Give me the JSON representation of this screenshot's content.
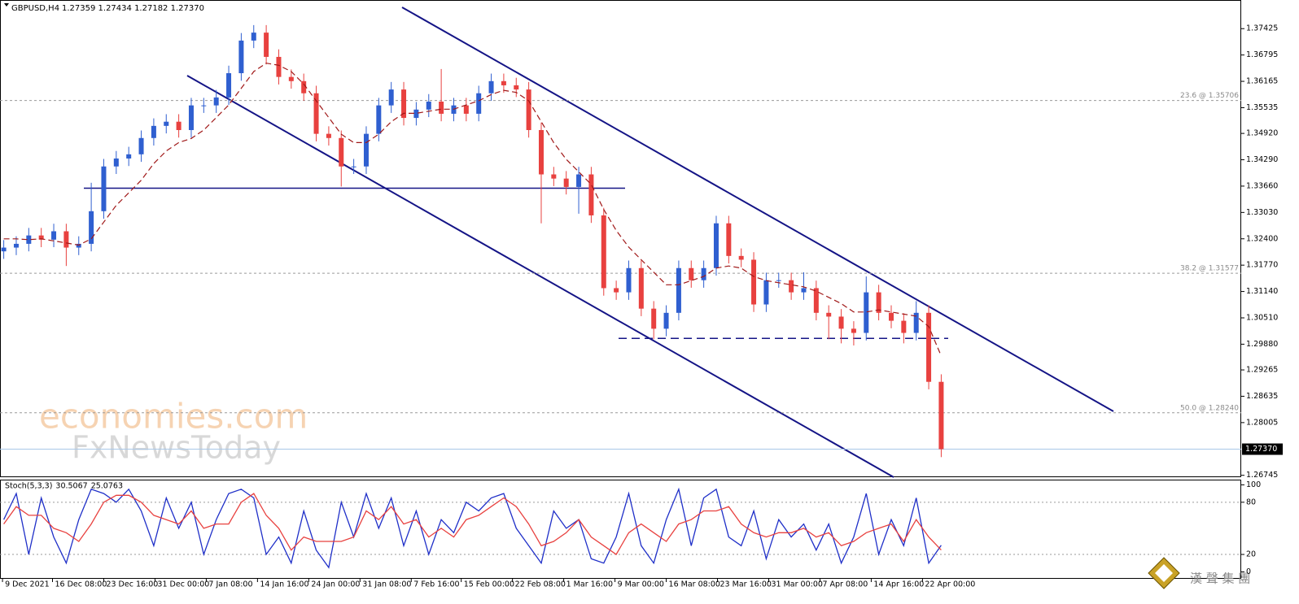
{
  "chart_data": [
    {
      "type": "candlestick",
      "title": "GBPUSD,H4",
      "header_values": "1.27359 1.27434 1.27182 1.27370",
      "xlim": [
        -0.3,
        99
      ],
      "ylim": [
        1.267,
        1.3811
      ],
      "yticks": [
        {
          "value": 1.37425,
          "label": "1.37425"
        },
        {
          "value": 1.36795,
          "label": "1.36795"
        },
        {
          "value": 1.36165,
          "label": "1.36165"
        },
        {
          "value": 1.35535,
          "label": "1.35535"
        },
        {
          "value": 1.3492,
          "label": "1.34920"
        },
        {
          "value": 1.3429,
          "label": "1.34290"
        },
        {
          "value": 1.3366,
          "label": "1.33660"
        },
        {
          "value": 1.3303,
          "label": "1.33030"
        },
        {
          "value": 1.324,
          "label": "1.32400"
        },
        {
          "value": 1.3177,
          "label": "1.31770"
        },
        {
          "value": 1.3114,
          "label": "1.31140"
        },
        {
          "value": 1.3051,
          "label": "1.30510"
        },
        {
          "value": 1.2988,
          "label": "1.29880"
        },
        {
          "value": 1.29265,
          "label": "1.29265"
        },
        {
          "value": 1.28635,
          "label": "1.28635"
        },
        {
          "value": 1.28005,
          "label": "1.28005"
        },
        {
          "value": 1.26745,
          "label": "1.26745"
        }
      ],
      "up_color": "#2f5fd0",
      "down_color": "#e8413f",
      "open": [
        1.321,
        1.3219,
        1.3228,
        1.3248,
        1.3238,
        1.3258,
        1.3219,
        1.3228,
        1.3306,
        1.3413,
        1.3432,
        1.3442,
        1.3481,
        1.351,
        1.352,
        1.35,
        1.3559,
        1.3559,
        1.3578,
        1.3636,
        1.3714,
        1.3733,
        1.3675,
        1.3627,
        1.3617,
        1.3588,
        1.3491,
        1.3481,
        1.3413,
        1.3413,
        1.3491,
        1.3559,
        1.3597,
        1.3529,
        1.3549,
        1.3568,
        1.3539,
        1.3559,
        1.3539,
        1.3588,
        1.3617,
        1.3607,
        1.3597,
        1.35,
        1.3394,
        1.3384,
        1.3364,
        1.3394,
        1.3296,
        1.3122,
        1.3112,
        1.317,
        1.3073,
        1.3025,
        1.3063,
        1.317,
        1.3141,
        1.317,
        1.3277,
        1.3199,
        1.319,
        1.3083,
        1.3141,
        1.3141,
        1.3112,
        1.3122,
        1.3063,
        1.3054,
        1.3025,
        1.3015,
        1.3112,
        1.3063,
        1.3044,
        1.3015,
        1.3063,
        1.2898
      ],
      "high": [
        1.3237,
        1.3246,
        1.3266,
        1.3266,
        1.3276,
        1.3276,
        1.3246,
        1.3374,
        1.3431,
        1.345,
        1.346,
        1.3499,
        1.3528,
        1.3538,
        1.3538,
        1.3577,
        1.3577,
        1.3596,
        1.3654,
        1.3732,
        1.3751,
        1.3751,
        1.3693,
        1.3645,
        1.3635,
        1.3606,
        1.3509,
        1.3499,
        1.3431,
        1.3509,
        1.3577,
        1.3615,
        1.3615,
        1.3567,
        1.3586,
        1.3646,
        1.3577,
        1.3577,
        1.3606,
        1.3635,
        1.3635,
        1.3625,
        1.3615,
        1.3518,
        1.3412,
        1.3402,
        1.3412,
        1.3412,
        1.3314,
        1.314,
        1.3188,
        1.3188,
        1.3091,
        1.3081,
        1.3188,
        1.3188,
        1.3188,
        1.3295,
        1.3295,
        1.3217,
        1.3208,
        1.3159,
        1.3159,
        1.3159,
        1.316,
        1.314,
        1.3081,
        1.3072,
        1.3043,
        1.315,
        1.313,
        1.3081,
        1.3062,
        1.3091,
        1.3081,
        1.2916
      ],
      "low": [
        1.3192,
        1.3201,
        1.321,
        1.322,
        1.322,
        1.3175,
        1.3201,
        1.321,
        1.3288,
        1.3395,
        1.3414,
        1.3424,
        1.3463,
        1.3492,
        1.3482,
        1.3482,
        1.3541,
        1.3541,
        1.356,
        1.3618,
        1.3696,
        1.3657,
        1.3609,
        1.3599,
        1.357,
        1.3473,
        1.3463,
        1.3365,
        1.3395,
        1.3395,
        1.3473,
        1.3541,
        1.3511,
        1.3511,
        1.3531,
        1.3521,
        1.3521,
        1.3521,
        1.3521,
        1.357,
        1.3589,
        1.3579,
        1.3482,
        1.3277,
        1.3366,
        1.3346,
        1.33,
        1.3278,
        1.3104,
        1.3094,
        1.3094,
        1.3055,
        1.3,
        1.3007,
        1.3045,
        1.3123,
        1.3123,
        1.3152,
        1.3181,
        1.3172,
        1.3065,
        1.3065,
        1.3123,
        1.3094,
        1.3094,
        1.3045,
        1.3,
        1.299,
        1.2985,
        1.2997,
        1.3045,
        1.3026,
        1.299,
        1.2997,
        1.288,
        1.2718
      ],
      "close": [
        1.3219,
        1.3228,
        1.3248,
        1.3238,
        1.3258,
        1.3219,
        1.3228,
        1.3306,
        1.3413,
        1.3432,
        1.3442,
        1.3481,
        1.351,
        1.352,
        1.35,
        1.3559,
        1.3559,
        1.3578,
        1.3636,
        1.3714,
        1.3733,
        1.3675,
        1.3627,
        1.3617,
        1.3588,
        1.3491,
        1.3481,
        1.3413,
        1.3413,
        1.3491,
        1.3559,
        1.3597,
        1.3529,
        1.3549,
        1.3568,
        1.3539,
        1.3559,
        1.3539,
        1.3588,
        1.3617,
        1.3607,
        1.3597,
        1.35,
        1.3394,
        1.3384,
        1.3364,
        1.3394,
        1.3296,
        1.3122,
        1.3112,
        1.317,
        1.3073,
        1.3025,
        1.3063,
        1.317,
        1.3141,
        1.317,
        1.3277,
        1.3199,
        1.319,
        1.3083,
        1.3141,
        1.3141,
        1.3112,
        1.3122,
        1.3063,
        1.3054,
        1.3025,
        1.3015,
        1.3112,
        1.3063,
        1.3044,
        1.3015,
        1.3063,
        1.2898,
        1.2737
      ],
      "ma": {
        "color": "#a01818",
        "values": [
          1.324,
          1.324,
          1.3238,
          1.324,
          1.3235,
          1.323,
          1.3225,
          1.324,
          1.328,
          1.332,
          1.335,
          1.338,
          1.342,
          1.345,
          1.347,
          1.348,
          1.35,
          1.353,
          1.356,
          1.36,
          1.364,
          1.366,
          1.3655,
          1.364,
          1.361,
          1.357,
          1.353,
          1.349,
          1.347,
          1.347,
          1.349,
          1.352,
          1.354,
          1.354,
          1.3545,
          1.355,
          1.355,
          1.356,
          1.357,
          1.3585,
          1.3595,
          1.359,
          1.357,
          1.352,
          1.347,
          1.343,
          1.34,
          1.337,
          1.331,
          1.326,
          1.322,
          1.319,
          1.316,
          1.313,
          1.313,
          1.314,
          1.315,
          1.317,
          1.3175,
          1.317,
          1.315,
          1.314,
          1.3135,
          1.313,
          1.3125,
          1.3115,
          1.31,
          1.3085,
          1.3065,
          1.3065,
          1.307,
          1.3065,
          1.306,
          1.3055,
          1.303,
          1.296
        ]
      },
      "hlines": [
        {
          "value": 1.3361,
          "dashed": false
        },
        {
          "value": 1.3002,
          "dashed": true
        }
      ],
      "fib_levels": [
        {
          "value": 1.35706,
          "label": "23.6 @ 1.35706"
        },
        {
          "value": 1.31577,
          "label": "38.2 @ 1.31577"
        },
        {
          "value": 1.2824,
          "label": "50.0 @ 1.28240"
        }
      ],
      "current_price": {
        "value": 1.2737,
        "label": "1.27370"
      },
      "watermarks": [
        "economies.com",
        "FxNewsToday"
      ],
      "logo_text": "漢 聲 集 團"
    },
    {
      "type": "line",
      "title": "Stoch(5,3,3)",
      "xlim": [
        -0.3,
        99
      ],
      "ylim": [
        -8,
        106
      ],
      "yticks": [
        100,
        80,
        20,
        0
      ],
      "levels": [
        80,
        20
      ],
      "xticks": [
        {
          "value": -0.1,
          "label": "9 Dec 2021"
        },
        {
          "value": 3.9,
          "label": "16 Dec 08:00"
        },
        {
          "value": 8.0,
          "label": "23 Dec 16:00"
        },
        {
          "value": 12.1,
          "label": "31 Dec 00:00"
        },
        {
          "value": 16.2,
          "label": "7 Jan 08:00"
        },
        {
          "value": 20.3,
          "label": "14 Jan 16:00"
        },
        {
          "value": 24.4,
          "label": "24 Jan 00:00"
        },
        {
          "value": 28.5,
          "label": "31 Jan 08:00"
        },
        {
          "value": 32.6,
          "label": "7 Feb 16:00"
        },
        {
          "value": 36.6,
          "label": "15 Feb 00:00"
        },
        {
          "value": 40.7,
          "label": "22 Feb 08:00"
        },
        {
          "value": 44.8,
          "label": "1 Mar 16:00"
        },
        {
          "value": 48.9,
          "label": "9 Mar 00:00"
        },
        {
          "value": 53.0,
          "label": "16 Mar 08:00"
        },
        {
          "value": 57.1,
          "label": "23 Mar 16:00"
        },
        {
          "value": 61.2,
          "label": "31 Mar 00:00"
        },
        {
          "value": 65.3,
          "label": "7 Apr 08:00"
        },
        {
          "value": 69.4,
          "label": "14 Apr 16:00"
        },
        {
          "value": 73.5,
          "label": "22 Apr 00:00"
        }
      ],
      "lines": [
        {
          "color": "#1f2fc8",
          "values": [
            60,
            90,
            20,
            85,
            40,
            10,
            60,
            95,
            90,
            80,
            95,
            70,
            30,
            85,
            50,
            80,
            20,
            60,
            90,
            95,
            85,
            20,
            40,
            10,
            70,
            25,
            5,
            80,
            40,
            90,
            50,
            85,
            30,
            70,
            20,
            60,
            45,
            80,
            70,
            85,
            90,
            50,
            30,
            10,
            70,
            50,
            60,
            15,
            10,
            40,
            90,
            30,
            10,
            60,
            95,
            30,
            85,
            95,
            40,
            30,
            70,
            15,
            60,
            40,
            55,
            25,
            55,
            10,
            40,
            90,
            20,
            60,
            30,
            85,
            10,
            30.5067
          ]
        },
        {
          "color": "#e8413f",
          "values": [
            55,
            75,
            65,
            65,
            50,
            45,
            35,
            55,
            80,
            88,
            88,
            80,
            65,
            60,
            55,
            70,
            50,
            55,
            55,
            80,
            90,
            65,
            50,
            25,
            40,
            35,
            35,
            35,
            40,
            70,
            60,
            75,
            55,
            60,
            40,
            50,
            40,
            60,
            65,
            75,
            85,
            75,
            55,
            30,
            35,
            45,
            60,
            40,
            30,
            20,
            45,
            55,
            45,
            35,
            55,
            60,
            70,
            70,
            75,
            55,
            45,
            40,
            45,
            45,
            50,
            40,
            45,
            30,
            35,
            45,
            50,
            55,
            35,
            60,
            40,
            25.0763
          ]
        }
      ]
    }
  ]
}
